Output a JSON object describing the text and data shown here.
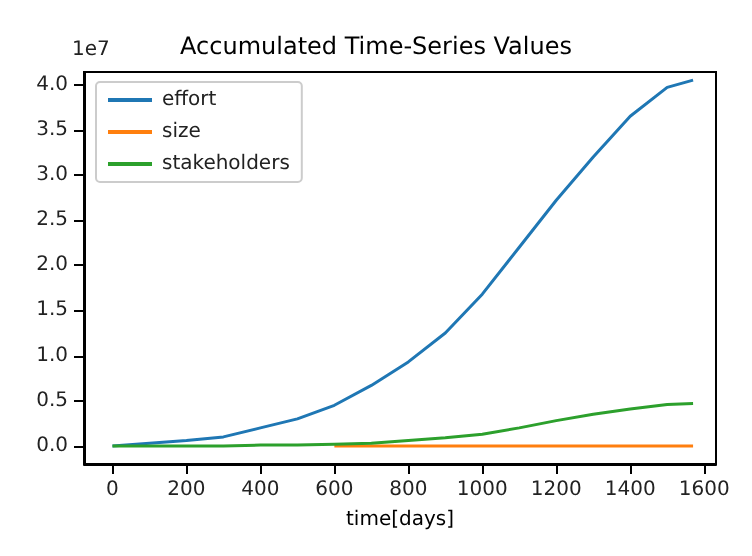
{
  "chart_data": {
    "type": "line",
    "title": "Accumulated Time-Series Values",
    "xlabel": "time[days]",
    "annotations": [
      "1e7"
    ],
    "x": [
      0,
      100,
      200,
      300,
      400,
      500,
      600,
      700,
      800,
      900,
      1000,
      1100,
      1200,
      1300,
      1400,
      1500,
      1570
    ],
    "series": [
      {
        "name": "effort",
        "color": "#1f77b4",
        "values": [
          0,
          0.03,
          0.06,
          0.1,
          0.2,
          0.3,
          0.45,
          0.67,
          0.93,
          1.25,
          1.68,
          2.2,
          2.72,
          3.2,
          3.65,
          3.97,
          4.05
        ]
      },
      {
        "name": "size",
        "color": "#ff7f0e",
        "values": [
          null,
          null,
          null,
          null,
          null,
          null,
          0,
          0,
          0,
          0,
          0,
          0,
          0,
          0,
          0,
          0,
          0
        ]
      },
      {
        "name": "stakeholders",
        "color": "#2ca02c",
        "values": [
          0,
          0,
          0,
          0,
          0.01,
          0.01,
          0.02,
          0.03,
          0.06,
          0.09,
          0.13,
          0.2,
          0.28,
          0.35,
          0.41,
          0.46,
          0.47
        ]
      }
    ],
    "xlim": [
      -77,
      1632
    ],
    "xticks": [
      0,
      200,
      400,
      600,
      800,
      1000,
      1200,
      1400,
      1600
    ],
    "ylim": [
      -0.2,
      4.14
    ],
    "yticks": [
      {
        "value": 0,
        "label": "0.0"
      },
      {
        "value": 0.5,
        "label": "0.5"
      },
      {
        "value": 1,
        "label": "1.0"
      },
      {
        "value": 1.5,
        "label": "1.5"
      },
      {
        "value": 2,
        "label": "2.0"
      },
      {
        "value": 2.5,
        "label": "2.5"
      },
      {
        "value": 3,
        "label": "3.0"
      },
      {
        "value": 3.5,
        "label": "3.5"
      },
      {
        "value": 4,
        "label": "4.0"
      }
    ],
    "grid": false,
    "legend": "top left",
    "marker": "none",
    "line_style": "solid"
  }
}
